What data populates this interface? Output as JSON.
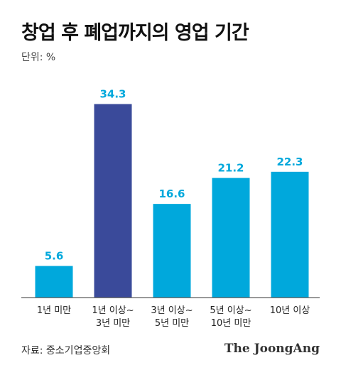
{
  "title": "창업 후 폐업까지의 영업 기간",
  "unit_label": "단위: %",
  "source": "자료: 중소기업중앙회",
  "brand": "The JoongAng",
  "colors": {
    "primary": "#00a8dc",
    "highlight": "#3a4a9a",
    "axis": "#333333",
    "label": "#00a8dc"
  },
  "chart_data": {
    "type": "bar",
    "categories": [
      [
        "1년 미만"
      ],
      [
        "1년 이상~",
        "3년 미만"
      ],
      [
        "3년 이상~",
        "5년 미만"
      ],
      [
        "5년 이상~",
        "10년 미만"
      ],
      [
        "10년 이상"
      ]
    ],
    "values": [
      5.6,
      34.3,
      16.6,
      21.2,
      22.3
    ],
    "value_labels": [
      "5.6",
      "34.3",
      "16.6",
      "21.2",
      "22.3"
    ],
    "highlight_index": 1,
    "ylim": [
      0,
      35.5
    ],
    "xlabel": "",
    "ylabel": "",
    "grid": false
  }
}
